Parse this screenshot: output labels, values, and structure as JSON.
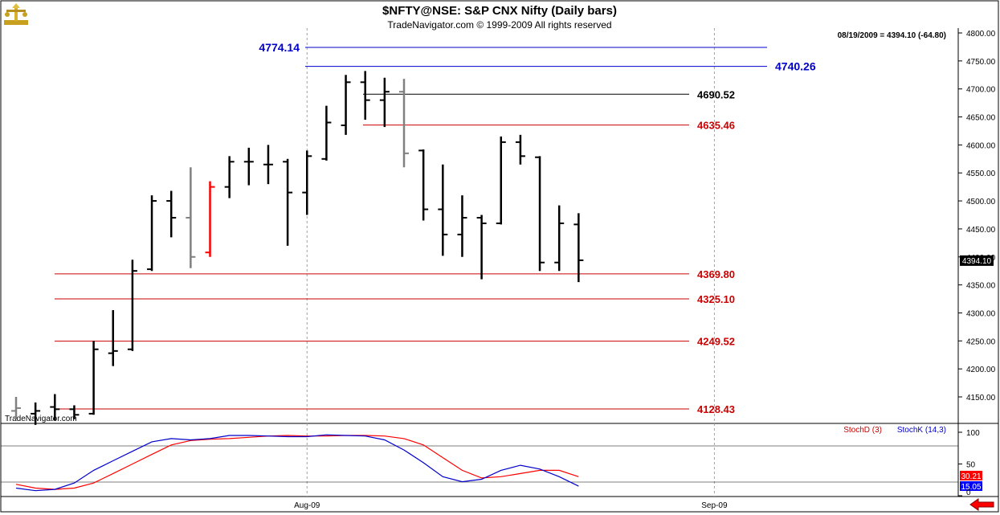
{
  "header": {
    "title": "$NFTY@NSE:  S&P CNX Nifty  (Daily bars)",
    "copyright": "TradeNavigator.com © 1999-2009 All rights reserved",
    "status": "08/19/2009 = 4394.10 (-64.80)",
    "watermark": "TradeNavigator.com"
  },
  "colors": {
    "up": "#000000",
    "gray": "#808080",
    "red_bar": "#ff0000",
    "level_red": "#cc0000",
    "level_blue": "#0000cc",
    "stoch_d": "#ff0000",
    "stoch_k": "#0000cc"
  },
  "chart_data": {
    "type": "ohlc",
    "x_axis": {
      "labels": [
        {
          "text": "Aug-09",
          "index": 15
        },
        {
          "text": "Sep-09",
          "index": 36
        }
      ]
    },
    "y_axis": {
      "range": [
        4100,
        4810
      ],
      "ticks": [
        4150,
        4200,
        4250,
        4300,
        4350,
        4400,
        4450,
        4500,
        4550,
        4600,
        4650,
        4700,
        4750,
        4800
      ],
      "tick_labels": [
        "4150.00",
        "4200.00",
        "4250.00",
        "4300.00",
        "4350.00",
        "4400.00",
        "4450.00",
        "4500.00",
        "4550.00",
        "4600.00",
        "4650.00",
        "4700.00",
        "4750.00",
        "4800.00"
      ],
      "last_price_label": "4394.10",
      "last_price": 4394.1
    },
    "bars": [
      {
        "o": 4125,
        "h": 4150,
        "l": 4110,
        "c": 4130,
        "color": "gray"
      },
      {
        "o": 4120,
        "h": 4140,
        "l": 4100,
        "c": 4125,
        "color": "black"
      },
      {
        "o": 4132,
        "h": 4155,
        "l": 4108,
        "c": 4128,
        "color": "black"
      },
      {
        "o": 4128,
        "h": 4135,
        "l": 4110,
        "c": 4118,
        "color": "black"
      },
      {
        "o": 4120,
        "h": 4250,
        "l": 4118,
        "c": 4235,
        "color": "black"
      },
      {
        "o": 4228,
        "h": 4305,
        "l": 4205,
        "c": 4232,
        "color": "black"
      },
      {
        "o": 4235,
        "h": 4395,
        "l": 4232,
        "c": 4375,
        "color": "black"
      },
      {
        "o": 4378,
        "h": 4510,
        "l": 4375,
        "c": 4500,
        "color": "black"
      },
      {
        "o": 4500,
        "h": 4518,
        "l": 4435,
        "c": 4470,
        "color": "black"
      },
      {
        "o": 4470,
        "h": 4560,
        "l": 4380,
        "c": 4400,
        "color": "gray"
      },
      {
        "o": 4408,
        "h": 4535,
        "l": 4400,
        "c": 4525,
        "color": "red"
      },
      {
        "o": 4525,
        "h": 4580,
        "l": 4505,
        "c": 4570,
        "color": "black"
      },
      {
        "o": 4570,
        "h": 4595,
        "l": 4528,
        "c": 4570,
        "color": "black"
      },
      {
        "o": 4565,
        "h": 4600,
        "l": 4530,
        "c": 4565,
        "color": "black"
      },
      {
        "o": 4570,
        "h": 4575,
        "l": 4420,
        "c": 4515,
        "color": "black"
      },
      {
        "o": 4515,
        "h": 4590,
        "l": 4475,
        "c": 4580,
        "color": "black"
      },
      {
        "o": 4575,
        "h": 4670,
        "l": 4572,
        "c": 4640,
        "color": "black"
      },
      {
        "o": 4635,
        "h": 4725,
        "l": 4618,
        "c": 4712,
        "color": "black"
      },
      {
        "o": 4712,
        "h": 4732,
        "l": 4645,
        "c": 4680,
        "color": "black"
      },
      {
        "o": 4680,
        "h": 4720,
        "l": 4632,
        "c": 4695,
        "color": "black"
      },
      {
        "o": 4695,
        "h": 4718,
        "l": 4560,
        "c": 4585,
        "color": "gray"
      },
      {
        "o": 4590,
        "h": 4592,
        "l": 4465,
        "c": 4485,
        "color": "black"
      },
      {
        "o": 4485,
        "h": 4565,
        "l": 4402,
        "c": 4440,
        "color": "black"
      },
      {
        "o": 4440,
        "h": 4510,
        "l": 4400,
        "c": 4470,
        "color": "black"
      },
      {
        "o": 4470,
        "h": 4475,
        "l": 4360,
        "c": 4460,
        "color": "black"
      },
      {
        "o": 4460,
        "h": 4615,
        "l": 4458,
        "c": 4605,
        "color": "black"
      },
      {
        "o": 4605,
        "h": 4618,
        "l": 4565,
        "c": 4580,
        "color": "black"
      },
      {
        "o": 4578,
        "h": 4580,
        "l": 4375,
        "c": 4390,
        "color": "black"
      },
      {
        "o": 4390,
        "h": 4492,
        "l": 4375,
        "c": 4460,
        "color": "black"
      },
      {
        "o": 4458,
        "h": 4478,
        "l": 4355,
        "c": 4394,
        "color": "black"
      }
    ],
    "levels": [
      {
        "value": 4774.14,
        "label": "4774.14",
        "color": "blue",
        "label_side": "left"
      },
      {
        "value": 4740.26,
        "label": "4740.26",
        "color": "blue",
        "label_side": "right"
      },
      {
        "value": 4690.52,
        "label": "4690.52",
        "color": "black",
        "label_side": "right"
      },
      {
        "value": 4635.46,
        "label": "4635.46",
        "color": "red",
        "label_side": "right"
      },
      {
        "value": 4369.8,
        "label": "4369.80",
        "color": "red",
        "label_side": "right"
      },
      {
        "value": 4325.1,
        "label": "4325.10",
        "color": "red",
        "label_side": "right"
      },
      {
        "value": 4249.52,
        "label": "4249.52",
        "color": "red",
        "label_side": "right"
      },
      {
        "value": 4128.43,
        "label": "4128.43",
        "color": "red",
        "label_side": "right"
      }
    ],
    "stochastic": {
      "d_label": "StochD (3)",
      "k_label": "StochK (14,3)",
      "y_ticks": [
        {
          "value": 100,
          "label": "100"
        },
        {
          "value": 50,
          "label": "50"
        },
        {
          "value": 0,
          "label": "0"
        }
      ],
      "d_value_label": "30.21",
      "k_value_label": "15.05",
      "d": [
        18,
        12,
        10,
        12,
        20,
        35,
        50,
        65,
        80,
        87,
        89,
        90,
        92,
        94,
        95,
        94,
        94,
        95,
        95,
        94,
        90,
        80,
        60,
        40,
        28,
        30,
        35,
        40,
        40,
        30
      ],
      "k": [
        12,
        8,
        10,
        20,
        40,
        55,
        70,
        85,
        90,
        88,
        90,
        95,
        95,
        94,
        93,
        93,
        96,
        95,
        94,
        88,
        72,
        52,
        30,
        22,
        26,
        40,
        48,
        42,
        30,
        15
      ]
    }
  }
}
